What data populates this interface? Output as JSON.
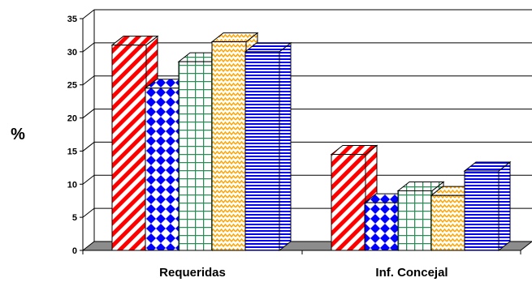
{
  "chart_data": {
    "type": "bar",
    "title": "",
    "xlabel": "",
    "ylabel": "%",
    "ylim": [
      0,
      35
    ],
    "yticks": [
      0,
      5,
      10,
      15,
      20,
      25,
      30,
      35
    ],
    "categories": [
      "Requeridas",
      "Inf. Concejal"
    ],
    "grid": true,
    "legend": "none",
    "series": [
      {
        "values": [
          31.0,
          14.5
        ],
        "color": "#ff0000",
        "pattern": "diagonal-stripes"
      },
      {
        "values": [
          24.5,
          7.2
        ],
        "color": "#0000ff",
        "pattern": "diamonds"
      },
      {
        "values": [
          28.5,
          9.0
        ],
        "color": "#2e8b57",
        "pattern": "grid"
      },
      {
        "values": [
          31.5,
          8.3
        ],
        "color": "#ffa500",
        "pattern": "zigzag"
      },
      {
        "values": [
          30.0,
          12.0
        ],
        "color": "#0000ff",
        "pattern": "horizontal-stripes"
      }
    ]
  }
}
